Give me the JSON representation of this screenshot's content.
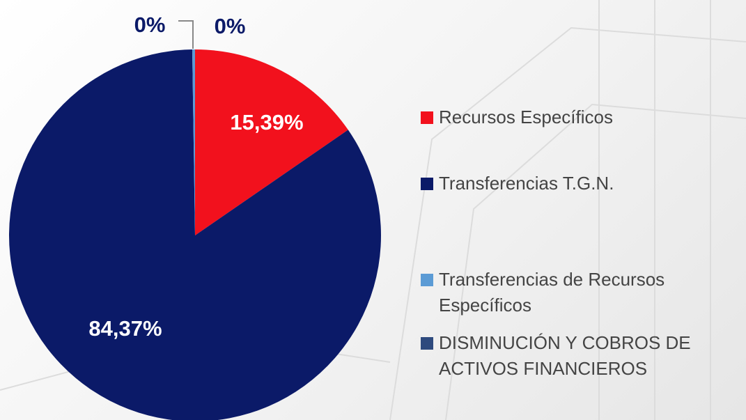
{
  "chart_data": {
    "type": "pie",
    "categories": [
      "Recursos Específicos",
      "Transferencias T.G.N.",
      "Transferencias de Recursos Específicos",
      "DISMINUCIÓN Y COBROS DE ACTIVOS FINANCIEROS"
    ],
    "values": [
      15.39,
      84.37,
      0.24,
      0
    ],
    "value_labels": [
      "15,39%",
      "84,37%",
      "0%",
      "0%"
    ],
    "colors": [
      "#f2111d",
      "#0b1a68",
      "#5b9bd5",
      "#2e4a7e"
    ]
  }
}
